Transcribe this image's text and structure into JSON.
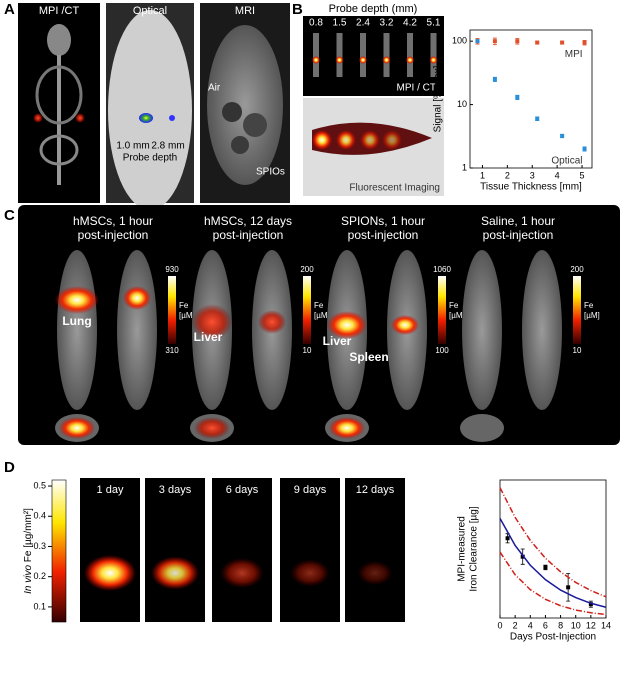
{
  "panel_a": {
    "label": "A",
    "titles": [
      "MPI /CT",
      "Optical",
      "MRI"
    ],
    "depth_left": "1.0 mm",
    "depth_right": "2.8 mm",
    "depth_caption": "Probe depth",
    "air": "Air",
    "spions": "SPIOs"
  },
  "panel_b": {
    "label": "B",
    "probe_title": "Probe depth (mm)",
    "depths": [
      "0.8",
      "1.5",
      "2.4",
      "3.2",
      "4.2",
      "5.1"
    ],
    "mpi_caption": "MPI / CT",
    "fluor_caption": "Fluorescent Imaging"
  },
  "panel_c": {
    "label": "C",
    "groups": [
      {
        "title": [
          "hMSCs, 1 hour",
          "post-injection"
        ],
        "cbar_max": 930,
        "cbar_min": 310,
        "unit": [
          "Fe",
          "[µM]"
        ],
        "organs": [
          "Lung"
        ]
      },
      {
        "title": [
          "hMSCs, 12 days",
          "post-injection"
        ],
        "cbar_max": 200,
        "cbar_min": 10,
        "unit": [
          "Fe",
          "[µM]"
        ],
        "organs": [
          "Liver"
        ]
      },
      {
        "title": [
          "SPIONs,  1 hour",
          "post-injection"
        ],
        "cbar_max": 1060,
        "cbar_min": 100,
        "unit": [
          "Fe",
          "[µM]"
        ],
        "organs": [
          "Liver",
          "Spleen"
        ]
      },
      {
        "title": [
          "Saline, 1 hour",
          "post-injection"
        ],
        "cbar_max": 200,
        "cbar_min": 10,
        "unit": [
          "Fe",
          "[µM]"
        ],
        "organs": []
      }
    ]
  },
  "panel_d": {
    "label": "D",
    "days": [
      "1 day",
      "3 days",
      "6 days",
      "9 days",
      "12 days"
    ],
    "cbar_label_italic": "In vivo",
    "cbar_label": "Fe [µg/mm²]",
    "cbar_lim": [
      0.05,
      0.52
    ],
    "cbar_ticks": [
      0.1,
      0.2,
      0.3,
      0.4,
      0.5
    ]
  },
  "chart_data": [
    {
      "type": "scatter",
      "xlabel": "Tissue Thickness [mm]",
      "ylabel": [
        "Signal [% max]"
      ],
      "xlim": [
        0.5,
        5.4
      ],
      "ylim": [
        1,
        150
      ],
      "ylog": true,
      "xticks": [
        1,
        2,
        3,
        4,
        5
      ],
      "yticks": [
        1,
        10,
        100
      ],
      "series": [
        {
          "name": "MPI",
          "color": "#e0502a",
          "style": "points",
          "x": [
            0.8,
            1.5,
            2.4,
            3.2,
            4.2,
            5.1
          ],
          "values": [
            100,
            100,
            100,
            95,
            95,
            95
          ],
          "errors": [
            10,
            12,
            10,
            5,
            5,
            8
          ]
        },
        {
          "name": "Optical",
          "color": "#2a8fd8",
          "style": "points",
          "x": [
            0.8,
            1.5,
            2.4,
            3.2,
            4.2,
            5.1
          ],
          "values": [
            100,
            25,
            13,
            6,
            3.2,
            2
          ],
          "errors": [
            5,
            2,
            1,
            0.4,
            0.2,
            0.15
          ]
        }
      ]
    },
    {
      "type": "scatter",
      "xlabel": "Days Post-Injection",
      "ylabel": [
        "MPI-measured",
        "Iron Clearance [µg]"
      ],
      "xlim": [
        0,
        14
      ],
      "ylim": [
        0,
        900
      ],
      "ylog": false,
      "xticks": [
        0,
        2,
        4,
        6,
        8,
        10,
        12,
        14
      ],
      "series": [
        {
          "color": "#000000",
          "style": "points",
          "x": [
            1,
            3,
            6,
            9,
            12
          ],
          "values": [
            520,
            400,
            330,
            200,
            90
          ],
          "errors": [
            30,
            50,
            15,
            90,
            20
          ]
        },
        {
          "color": "#1a1a9c",
          "style": "solid",
          "x": [
            0,
            2,
            4,
            6,
            8,
            10,
            12,
            14
          ],
          "values": [
            650,
            473,
            344,
            250,
            182,
            133,
            96,
            70
          ]
        },
        {
          "color": "#d0201a",
          "style": "dashdot",
          "x": [
            0,
            2,
            4,
            6,
            8,
            10,
            12,
            14
          ],
          "values": [
            850,
            656,
            506,
            390,
            301,
            232,
            179,
            138
          ]
        },
        {
          "color": "#d0201a",
          "style": "dashdot",
          "x": [
            0,
            2,
            4,
            6,
            8,
            10,
            12,
            14
          ],
          "values": [
            430,
            282,
            185,
            122,
            80,
            52,
            34,
            23
          ]
        }
      ]
    }
  ]
}
